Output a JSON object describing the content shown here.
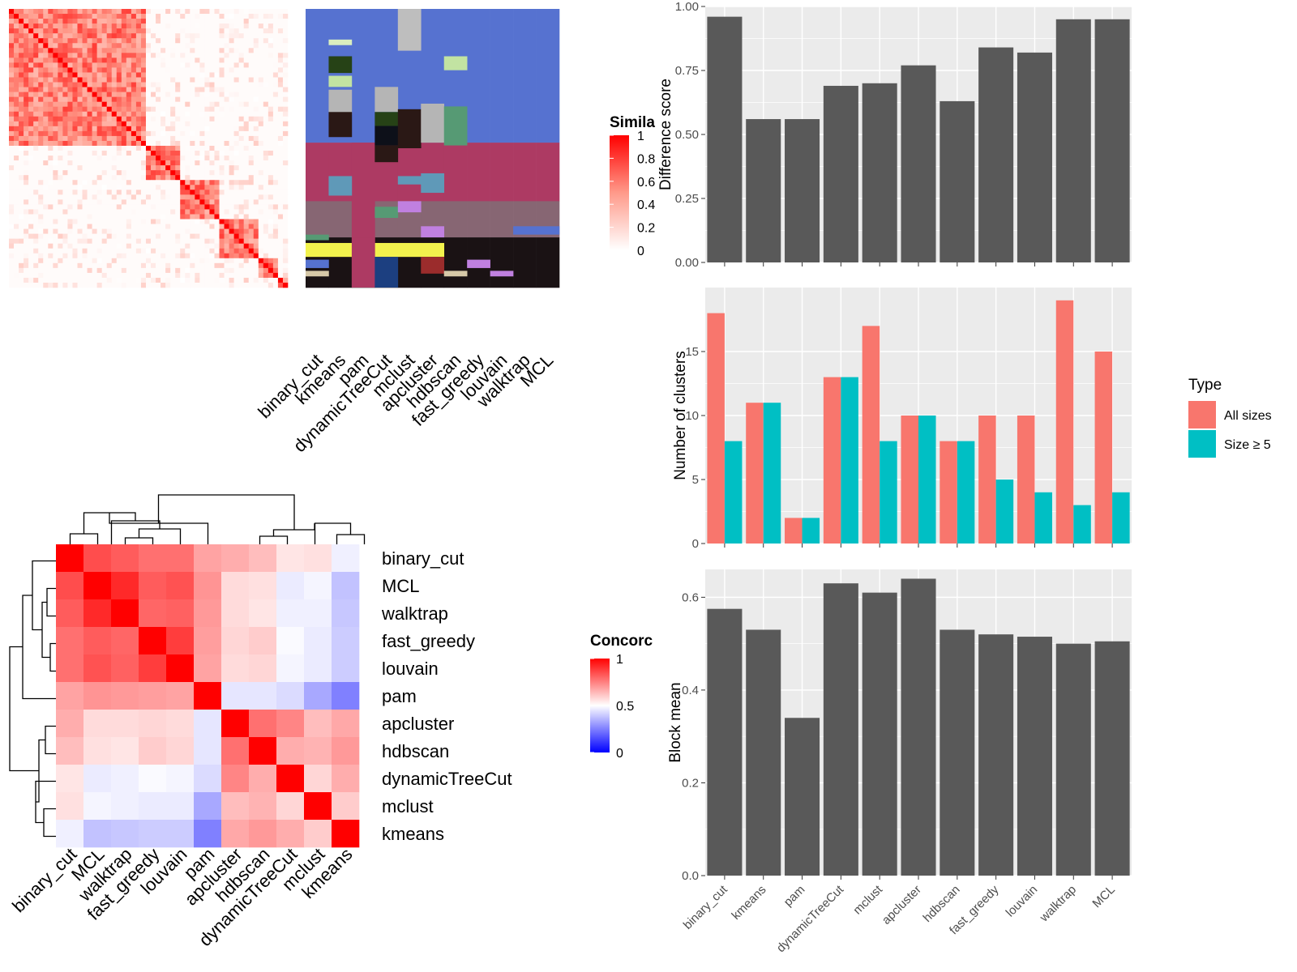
{
  "colors": {
    "panel_bg": "#ebebeb",
    "grid": "#ffffff",
    "bar_fill": "#595959",
    "all_sizes": "#f8766d",
    "size_ge_5": "#00bfc4",
    "high": "#ff0000",
    "mid": "#ffffff",
    "low": "#0000ff"
  },
  "chart_data": [
    {
      "id": "similarity_heatmap",
      "type": "heatmap",
      "legend_title": "Simila",
      "legend_ticks": [
        "0",
        "0.2",
        "0.4",
        "0.6",
        "0.8",
        "1"
      ],
      "legend_values": [
        0,
        0.2,
        0.4,
        0.6,
        0.8,
        1
      ],
      "block_sizes": [
        28,
        7,
        8,
        8,
        4,
        2
      ],
      "annotation_columns": [
        "binary_cut",
        "kmeans",
        "pam",
        "dynamicTreeCut",
        "mclust",
        "apcluster",
        "hdbscan",
        "fast_greedy",
        "louvain",
        "walktrap",
        "MCL"
      ]
    },
    {
      "id": "concordance_heatmap",
      "type": "heatmap",
      "legend_title": "Concorc",
      "legend_ticks": [
        "0",
        "0.5",
        "1"
      ],
      "legend_values": [
        0,
        0.5,
        1
      ],
      "row_labels": [
        "binary_cut",
        "MCL",
        "walktrap",
        "fast_greedy",
        "louvain",
        "pam",
        "apcluster",
        "hdbscan",
        "dynamicTreeCut",
        "mclust",
        "kmeans"
      ],
      "col_labels": [
        "binary_cut",
        "MCL",
        "walktrap",
        "fast_greedy",
        "louvain",
        "pam",
        "apcluster",
        "hdbscan",
        "dynamicTreeCut",
        "mclust",
        "kmeans"
      ],
      "values": [
        [
          1.0,
          0.85,
          0.82,
          0.78,
          0.78,
          0.68,
          0.66,
          0.63,
          0.55,
          0.56,
          0.47
        ],
        [
          0.85,
          1.0,
          0.92,
          0.82,
          0.84,
          0.71,
          0.57,
          0.56,
          0.46,
          0.48,
          0.38
        ],
        [
          0.82,
          0.92,
          1.0,
          0.8,
          0.81,
          0.7,
          0.57,
          0.55,
          0.47,
          0.47,
          0.39
        ],
        [
          0.78,
          0.82,
          0.8,
          1.0,
          0.88,
          0.69,
          0.58,
          0.6,
          0.49,
          0.46,
          0.4
        ],
        [
          0.78,
          0.84,
          0.81,
          0.88,
          1.0,
          0.68,
          0.57,
          0.58,
          0.48,
          0.46,
          0.4
        ],
        [
          0.68,
          0.71,
          0.7,
          0.69,
          0.68,
          1.0,
          0.45,
          0.45,
          0.43,
          0.33,
          0.25
        ],
        [
          0.66,
          0.57,
          0.57,
          0.58,
          0.57,
          0.45,
          1.0,
          0.78,
          0.74,
          0.63,
          0.67
        ],
        [
          0.63,
          0.56,
          0.55,
          0.6,
          0.58,
          0.45,
          0.78,
          1.0,
          0.66,
          0.65,
          0.7
        ],
        [
          0.55,
          0.46,
          0.47,
          0.49,
          0.48,
          0.43,
          0.74,
          0.66,
          1.0,
          0.58,
          0.66
        ],
        [
          0.56,
          0.48,
          0.47,
          0.46,
          0.46,
          0.33,
          0.63,
          0.65,
          0.58,
          1.0,
          0.6
        ],
        [
          0.47,
          0.38,
          0.39,
          0.4,
          0.4,
          0.25,
          0.67,
          0.7,
          0.66,
          0.6,
          1.0
        ]
      ]
    },
    {
      "id": "difference_score",
      "type": "bar",
      "categories": [
        "binary_cut",
        "kmeans",
        "pam",
        "dynamicTreeCut",
        "mclust",
        "apcluster",
        "hdbscan",
        "fast_greedy",
        "louvain",
        "walktrap",
        "MCL"
      ],
      "values": [
        0.96,
        0.56,
        0.56,
        0.69,
        0.7,
        0.77,
        0.63,
        0.84,
        0.82,
        0.95,
        0.95
      ],
      "ylabel": "Difference score",
      "ylim": [
        0,
        1.0
      ],
      "yticks": [
        "0.00",
        "0.25",
        "0.50",
        "0.75",
        "1.00"
      ],
      "ytick_values": [
        0,
        0.25,
        0.5,
        0.75,
        1.0
      ],
      "grid": true
    },
    {
      "id": "number_of_clusters",
      "type": "bar",
      "categories": [
        "binary_cut",
        "kmeans",
        "pam",
        "dynamicTreeCut",
        "mclust",
        "apcluster",
        "hdbscan",
        "fast_greedy",
        "louvain",
        "walktrap",
        "MCL"
      ],
      "series": [
        {
          "name": "All sizes",
          "values": [
            18,
            11,
            2,
            13,
            17,
            10,
            8,
            10,
            10,
            19,
            15
          ]
        },
        {
          "name": "Size ≥ 5",
          "values": [
            8,
            11,
            2,
            13,
            8,
            10,
            8,
            5,
            4,
            3,
            4
          ]
        }
      ],
      "ylabel": "Number of clusters",
      "ylim": [
        0,
        20
      ],
      "yticks": [
        "0",
        "5",
        "10",
        "15"
      ],
      "ytick_values": [
        0,
        5,
        10,
        15
      ],
      "legend_title": "Type",
      "legend_position": "right",
      "grid": true
    },
    {
      "id": "block_mean",
      "type": "bar",
      "categories": [
        "binary_cut",
        "kmeans",
        "pam",
        "dynamicTreeCut",
        "mclust",
        "apcluster",
        "hdbscan",
        "fast_greedy",
        "louvain",
        "walktrap",
        "MCL"
      ],
      "values": [
        0.575,
        0.53,
        0.34,
        0.63,
        0.61,
        0.64,
        0.53,
        0.52,
        0.515,
        0.5,
        0.505
      ],
      "ylabel": "Block mean",
      "ylim": [
        0,
        0.66
      ],
      "yticks": [
        "0.0",
        "0.2",
        "0.4",
        "0.6"
      ],
      "ytick_values": [
        0,
        0.2,
        0.4,
        0.6
      ],
      "grid": true
    }
  ]
}
